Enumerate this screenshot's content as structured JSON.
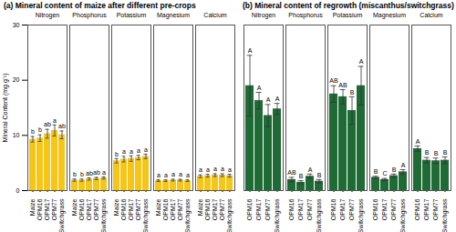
{
  "chart_data": [
    {
      "type": "bar",
      "title": "(a) Mineral content of maize after different pre-crops",
      "ylabel": "Mineral Content (mg g⁻¹)",
      "color": "#f5c518",
      "categories": [
        "Maize",
        "OPM16",
        "OPM17",
        "OPM77",
        "Switchgrass"
      ],
      "ylim": [
        0,
        30
      ],
      "yticks": [
        0,
        10,
        20,
        30
      ],
      "tick_labels": true,
      "panels": [
        {
          "name": "Nitrogen",
          "values": [
            9.3,
            9.5,
            10.3,
            10.9,
            10.1
          ],
          "errors": [
            0.5,
            0.6,
            0.8,
            1.0,
            0.7
          ],
          "letters": [
            "b",
            "b",
            "ab",
            "a",
            "ab"
          ]
        },
        {
          "name": "Phosphorus",
          "values": [
            1.9,
            1.9,
            2.1,
            2.2,
            2.3
          ],
          "errors": [
            0.2,
            0.2,
            0.2,
            0.2,
            0.2
          ],
          "letters": [
            "b",
            "b",
            "ab",
            "ab",
            "a"
          ]
        },
        {
          "name": "Potassium",
          "values": [
            5.4,
            5.7,
            5.8,
            6.0,
            6.2
          ],
          "errors": [
            0.4,
            0.5,
            0.5,
            0.4,
            0.4
          ],
          "letters": [
            "b",
            "a",
            "a",
            "a",
            "a"
          ]
        },
        {
          "name": "Magnesium",
          "values": [
            1.8,
            1.8,
            1.9,
            1.9,
            1.8
          ],
          "errors": [
            0.15,
            0.15,
            0.15,
            0.15,
            0.15
          ],
          "letters": [
            "a",
            "a",
            "a",
            "a",
            "a"
          ]
        },
        {
          "name": "Calcium",
          "values": [
            2.6,
            2.7,
            2.8,
            2.8,
            2.7
          ],
          "errors": [
            0.25,
            0.25,
            0.25,
            0.25,
            0.25
          ],
          "letters": [
            "a",
            "a",
            "a",
            "a",
            "a"
          ]
        }
      ]
    },
    {
      "type": "bar",
      "title": "(b) Mineral content of regrowth (miscanthus/switchgrass)",
      "color": "#1e6b35",
      "categories": [
        "OPM16",
        "OPM17",
        "OPM77",
        "Switchgrass"
      ],
      "ylim": [
        0,
        30
      ],
      "tick_labels": "x",
      "panels": [
        {
          "name": "Nitrogen",
          "values": [
            19.0,
            16.3,
            13.6,
            14.8
          ],
          "errors": [
            5.5,
            1.5,
            2.0,
            1.0
          ],
          "letters": [
            "A",
            "A",
            "A",
            "A"
          ]
        },
        {
          "name": "Phosphorus",
          "values": [
            2.0,
            1.5,
            2.6,
            1.7
          ],
          "errors": [
            0.4,
            0.3,
            0.4,
            0.3
          ],
          "letters": [
            "AB",
            "B",
            "A",
            "B"
          ]
        },
        {
          "name": "Potassium",
          "values": [
            17.5,
            17.0,
            14.5,
            19.0
          ],
          "errors": [
            1.5,
            1.3,
            2.5,
            3.5
          ],
          "letters": [
            "AB",
            "AB",
            "B",
            "A"
          ]
        },
        {
          "name": "Magnesium",
          "values": [
            2.4,
            2.0,
            2.7,
            3.4
          ],
          "errors": [
            0.2,
            0.2,
            0.3,
            0.4
          ],
          "letters": [
            "B",
            "C",
            "B",
            "A"
          ]
        },
        {
          "name": "Calcium",
          "values": [
            7.6,
            5.5,
            5.4,
            5.5
          ],
          "errors": [
            0.5,
            0.5,
            0.5,
            0.6
          ],
          "letters": [
            "A",
            "B",
            "B",
            "B"
          ]
        }
      ]
    }
  ]
}
